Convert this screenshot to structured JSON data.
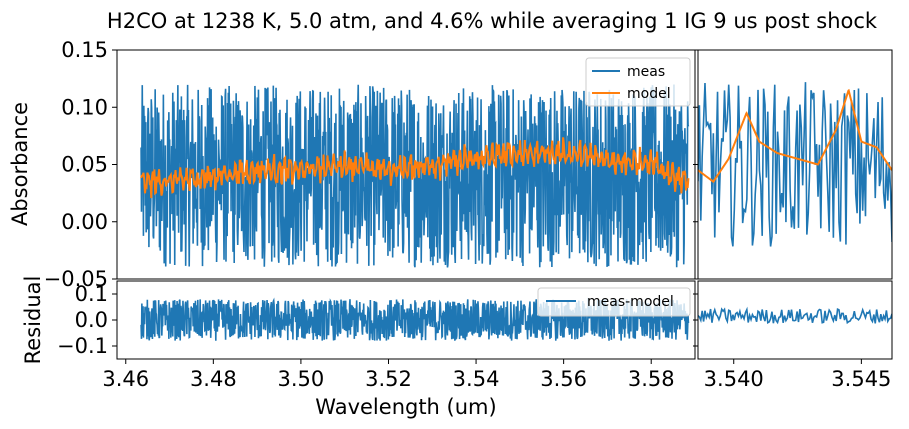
{
  "chart_data": {
    "type": "line",
    "title": "H2CO at 1238 K, 5.0 atm, and 4.6% while averaging 1 IG 9 us post shock",
    "xlabel": "Wavelength (um)",
    "colors": {
      "meas": "#1f77b4",
      "model": "#ff7f0e"
    },
    "panels": {
      "absorbance_main": {
        "ylabel": "Absorbance",
        "xlim": [
          3.458,
          3.59
        ],
        "ylim": [
          -0.05,
          0.15
        ],
        "yticks": [
          -0.05,
          0.0,
          0.05,
          0.1,
          0.15
        ],
        "ytick_labels": [
          "−0.05",
          "0.00",
          "0.05",
          "0.10",
          "0.15"
        ],
        "legend": {
          "position": "upper right",
          "entries": [
            "meas",
            "model"
          ]
        },
        "series": [
          {
            "name": "meas",
            "color": "#1f77b4",
            "x_range": [
              3.4635,
              3.5885
            ],
            "mean": 0.04,
            "noise_amplitude": 0.1
          },
          {
            "name": "model",
            "color": "#ff7f0e",
            "x": [
              3.4635,
              3.47,
              3.48,
              3.49,
              3.5,
              3.51,
              3.52,
              3.53,
              3.54,
              3.55,
              3.56,
              3.57,
              3.58,
              3.5885
            ],
            "y": [
              0.035,
              0.035,
              0.04,
              0.045,
              0.045,
              0.05,
              0.045,
              0.05,
              0.055,
              0.06,
              0.06,
              0.055,
              0.05,
              0.035
            ]
          }
        ]
      },
      "absorbance_zoom": {
        "xlim": [
          3.5386,
          3.5462
        ],
        "ylim": [
          -0.05,
          0.15
        ],
        "series": [
          {
            "name": "meas",
            "color": "#1f77b4",
            "mean": 0.05,
            "noise_amplitude": 0.09
          },
          {
            "name": "model",
            "color": "#ff7f0e",
            "x": [
              3.5386,
              3.5392,
              3.5398,
              3.5405,
              3.541,
              3.5417,
              3.5425,
              3.5433,
              3.544,
              3.5445,
              3.545,
              3.5456,
              3.5462
            ],
            "y": [
              0.045,
              0.035,
              0.055,
              0.095,
              0.07,
              0.06,
              0.055,
              0.05,
              0.08,
              0.115,
              0.07,
              0.065,
              0.045
            ]
          }
        ]
      },
      "residual_main": {
        "ylabel": "Residual",
        "xlim": [
          3.458,
          3.59
        ],
        "ylim": [
          -0.15,
          0.15
        ],
        "yticks": [
          -0.1,
          0.0,
          0.1
        ],
        "ytick_labels": [
          "−0.1",
          "0.0",
          "0.1"
        ],
        "legend": {
          "position": "upper right",
          "entries": [
            "meas-model"
          ]
        },
        "series": [
          {
            "name": "meas-model",
            "color": "#1f77b4",
            "x_range": [
              3.4635,
              3.5885
            ],
            "mean": 0.0,
            "noise_amplitude": 0.1
          }
        ]
      },
      "residual_zoom": {
        "xlim": [
          3.5386,
          3.5462
        ],
        "ylim": [
          -0.15,
          0.15
        ],
        "series": [
          {
            "name": "meas-model",
            "color": "#1f77b4",
            "mean": 0.015,
            "noise_amplitude": 0.035
          }
        ]
      }
    },
    "xticks_main": [
      3.46,
      3.48,
      3.5,
      3.52,
      3.54,
      3.56,
      3.58
    ],
    "xtick_labels_main": [
      "3.46",
      "3.48",
      "3.50",
      "3.52",
      "3.54",
      "3.56",
      "3.58"
    ],
    "xticks_zoom": [
      3.54,
      3.545
    ],
    "xtick_labels_zoom": [
      "3.540",
      "3.545"
    ],
    "grid": false
  }
}
